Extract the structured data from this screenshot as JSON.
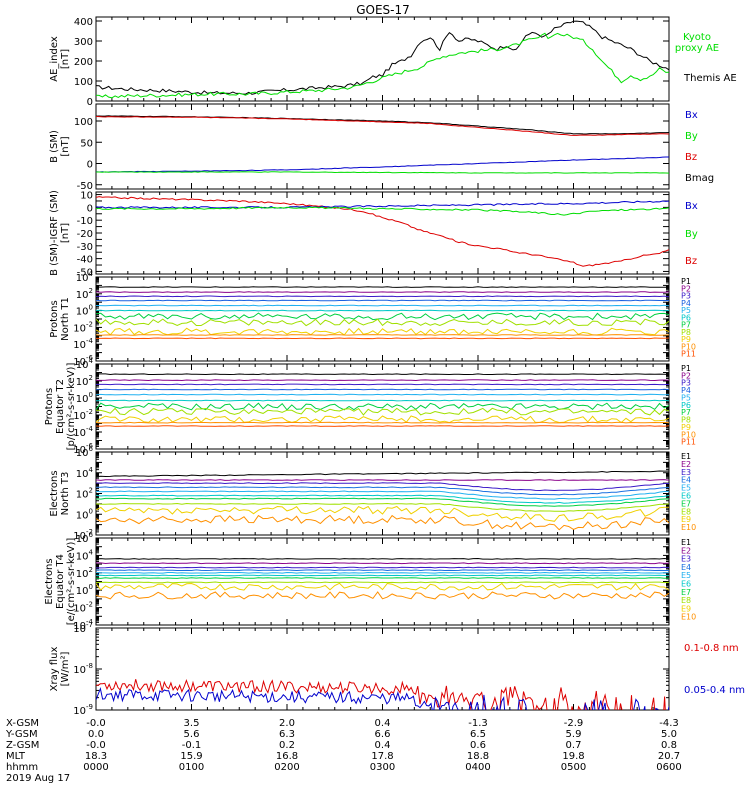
{
  "title": "GOES-17",
  "colors": {
    "black": "#000000",
    "green": "#00dd00",
    "blue": "#0000cc",
    "red": "#dd0000",
    "p": [
      "#000000",
      "#8a008a",
      "#3a1ac8",
      "#1a60e0",
      "#20b0f0",
      "#00c8c8",
      "#00d040",
      "#a0e000",
      "#f0d000",
      "#ff9000",
      "#ff5000",
      "#e00000"
    ],
    "e": [
      "#000000",
      "#8a008a",
      "#3a1ac8",
      "#1a70e0",
      "#20b0f0",
      "#00c8c8",
      "#00d040",
      "#a0e000",
      "#f0d000",
      "#ff9000",
      "#e00000"
    ]
  },
  "chart_data": [
    {
      "id": "ae",
      "type": "line",
      "ylabel": [
        "AE_index",
        "[nT]"
      ],
      "ylim": [
        0,
        420
      ],
      "yscale": "linear",
      "yticks": [
        0,
        100,
        200,
        300,
        400
      ],
      "legend": [
        {
          "text": "Kyoto",
          "color": "green"
        },
        {
          "text": "proxy AE",
          "color": "green"
        },
        {
          "text": "Themis AE",
          "color": "black"
        }
      ],
      "series": [
        {
          "color": "black",
          "points": [
            [
              0,
              70
            ],
            [
              0.3,
              60
            ],
            [
              0.8,
              50
            ],
            [
              1.2,
              40
            ],
            [
              1.6,
              40
            ],
            [
              2.0,
              55
            ],
            [
              2.3,
              65
            ],
            [
              2.6,
              75
            ],
            [
              2.8,
              90
            ],
            [
              2.9,
              120
            ],
            [
              3.0,
              130
            ],
            [
              3.1,
              180
            ],
            [
              3.2,
              200
            ],
            [
              3.3,
              230
            ],
            [
              3.4,
              300
            ],
            [
              3.5,
              320
            ],
            [
              3.6,
              260
            ],
            [
              3.7,
              350
            ],
            [
              3.8,
              300
            ],
            [
              3.9,
              310
            ],
            [
              4.0,
              300
            ],
            [
              4.1,
              280
            ],
            [
              4.2,
              260
            ],
            [
              4.3,
              280
            ],
            [
              4.4,
              250
            ],
            [
              4.5,
              330
            ],
            [
              4.6,
              340
            ],
            [
              4.7,
              320
            ],
            [
              4.8,
              360
            ],
            [
              4.9,
              380
            ],
            [
              5.0,
              400
            ],
            [
              5.1,
              390
            ],
            [
              5.2,
              360
            ],
            [
              5.3,
              320
            ],
            [
              5.4,
              300
            ],
            [
              5.5,
              280
            ],
            [
              5.6,
              260
            ],
            [
              5.7,
              230
            ],
            [
              5.8,
              200
            ],
            [
              5.9,
              180
            ],
            [
              6.0,
              160
            ]
          ]
        },
        {
          "color": "green",
          "points": [
            [
              0,
              20
            ],
            [
              0.3,
              25
            ],
            [
              0.8,
              30
            ],
            [
              1.2,
              35
            ],
            [
              1.6,
              35
            ],
            [
              2.0,
              45
            ],
            [
              2.4,
              55
            ],
            [
              2.7,
              70
            ],
            [
              2.9,
              100
            ],
            [
              3.1,
              130
            ],
            [
              3.4,
              170
            ],
            [
              3.6,
              220
            ],
            [
              3.8,
              240
            ],
            [
              4.0,
              250
            ],
            [
              4.2,
              260
            ],
            [
              4.4,
              280
            ],
            [
              4.5,
              300
            ],
            [
              4.6,
              310
            ],
            [
              4.7,
              330
            ],
            [
              4.75,
              310
            ],
            [
              4.8,
              340
            ],
            [
              5.0,
              320
            ],
            [
              5.1,
              300
            ],
            [
              5.2,
              260
            ],
            [
              5.3,
              200
            ],
            [
              5.4,
              150
            ],
            [
              5.5,
              100
            ],
            [
              5.6,
              130
            ],
            [
              5.7,
              110
            ],
            [
              5.8,
              120
            ],
            [
              5.9,
              160
            ],
            [
              6.0,
              140
            ]
          ]
        }
      ]
    },
    {
      "id": "bsm",
      "type": "line",
      "ylabel": [
        "B (SM)",
        "[nT]"
      ],
      "ylim": [
        -60,
        140
      ],
      "yscale": "linear",
      "yticks": [
        -50,
        0,
        50,
        100
      ],
      "legend": [
        {
          "text": "Bx",
          "color": "blue"
        },
        {
          "text": "By",
          "color": "green"
        },
        {
          "text": "Bz",
          "color": "red"
        },
        {
          "text": "Bmag",
          "color": "black"
        }
      ],
      "series": [
        {
          "color": "black",
          "points": [
            [
              0,
              112
            ],
            [
              1.0,
              110
            ],
            [
              2.0,
              106
            ],
            [
              3.0,
              100
            ],
            [
              3.5,
              96
            ],
            [
              4.0,
              88
            ],
            [
              4.5,
              80
            ],
            [
              4.9,
              72
            ],
            [
              5.0,
              70
            ],
            [
              5.5,
              70
            ],
            [
              6.0,
              73
            ]
          ]
        },
        {
          "color": "red",
          "points": [
            [
              0,
              110
            ],
            [
              1.0,
              109
            ],
            [
              2.0,
              105
            ],
            [
              3.0,
              98
            ],
            [
              3.5,
              94
            ],
            [
              4.0,
              85
            ],
            [
              4.5,
              76
            ],
            [
              4.9,
              68
            ],
            [
              5.0,
              66
            ],
            [
              5.5,
              68
            ],
            [
              6.0,
              70
            ]
          ]
        },
        {
          "color": "blue",
          "points": [
            [
              0,
              -20
            ],
            [
              1.0,
              -18
            ],
            [
              2.0,
              -15
            ],
            [
              3.0,
              -8
            ],
            [
              4.0,
              0
            ],
            [
              5.0,
              8
            ],
            [
              6.0,
              15
            ]
          ]
        },
        {
          "color": "green",
          "points": [
            [
              0,
              -20
            ],
            [
              1.0,
              -20
            ],
            [
              2.0,
              -20
            ],
            [
              3.0,
              -21
            ],
            [
              4.0,
              -22
            ],
            [
              5.0,
              -22
            ],
            [
              6.0,
              -22
            ]
          ]
        }
      ]
    },
    {
      "id": "bigrf",
      "type": "line",
      "ylabel": [
        "B (SM)-IGRF (SM)",
        "[nT]"
      ],
      "ylim": [
        -52,
        12
      ],
      "yscale": "linear",
      "yticks": [
        -50,
        -45,
        -40,
        -35,
        -30,
        -25,
        -20,
        -15,
        -10,
        -5,
        0,
        5,
        10
      ],
      "ytick_labels": [
        -50,
        -40,
        -30,
        -20,
        -10,
        0,
        10
      ],
      "legend": [
        {
          "text": "Bx",
          "color": "blue"
        },
        {
          "text": "By",
          "color": "green"
        },
        {
          "text": "Bz",
          "color": "red"
        }
      ],
      "series": [
        {
          "color": "red",
          "points": [
            [
              0,
              8
            ],
            [
              0.5,
              7
            ],
            [
              1.0,
              6
            ],
            [
              1.5,
              5
            ],
            [
              2.0,
              3
            ],
            [
              2.3,
              1
            ],
            [
              2.6,
              -1
            ],
            [
              2.8,
              -3
            ],
            [
              3.0,
              -8
            ],
            [
              3.2,
              -12
            ],
            [
              3.4,
              -18
            ],
            [
              3.6,
              -22
            ],
            [
              3.8,
              -27
            ],
            [
              4.0,
              -30
            ],
            [
              4.2,
              -32
            ],
            [
              4.4,
              -35
            ],
            [
              4.6,
              -37
            ],
            [
              4.8,
              -40
            ],
            [
              5.0,
              -43
            ],
            [
              5.1,
              -46
            ],
            [
              5.3,
              -44
            ],
            [
              5.5,
              -42
            ],
            [
              5.7,
              -38
            ],
            [
              5.9,
              -36
            ],
            [
              6.0,
              -33
            ]
          ]
        },
        {
          "color": "blue",
          "points": [
            [
              0,
              0
            ],
            [
              1.0,
              0
            ],
            [
              2.0,
              0
            ],
            [
              3.0,
              1
            ],
            [
              4.0,
              2
            ],
            [
              5.0,
              3
            ],
            [
              6.0,
              5
            ]
          ]
        },
        {
          "color": "green",
          "points": [
            [
              0,
              -1
            ],
            [
              1.0,
              -1
            ],
            [
              2.0,
              0
            ],
            [
              3.0,
              -1
            ],
            [
              4.0,
              -2
            ],
            [
              4.6,
              -4
            ],
            [
              4.9,
              -6
            ],
            [
              5.2,
              -3
            ],
            [
              5.5,
              -2
            ],
            [
              6.0,
              -1
            ]
          ]
        }
      ]
    },
    {
      "id": "pn",
      "type": "line",
      "ylabel": [
        "Protons",
        "North T1"
      ],
      "ylim": [
        -6,
        4
      ],
      "yscale": "log",
      "ytick_labels": [
        -6,
        -4,
        -2,
        0,
        2,
        4
      ],
      "channels": [
        "P1",
        "P2",
        "P3",
        "P4",
        "P5",
        "P6",
        "P7",
        "P8",
        "P9",
        "P10",
        "P11"
      ],
      "levels": [
        2.8,
        2.2,
        1.7,
        1.2,
        0.6,
        0,
        -0.7,
        -1.4,
        -2.5,
        -2.9,
        -3.3
      ]
    },
    {
      "id": "pe",
      "type": "line",
      "ylabel": [
        "Protons",
        "Equator T2",
        "[p/(cm²-s-sr-keV)]"
      ],
      "ylim": [
        -6,
        4
      ],
      "yscale": "log",
      "ytick_labels": [
        -6,
        -4,
        -2,
        0,
        2,
        4
      ],
      "channels": [
        "P1",
        "P2",
        "P3",
        "P4",
        "P5",
        "P6",
        "P7",
        "P8",
        "P9",
        "P10",
        "P11"
      ],
      "levels": [
        2.8,
        2.1,
        1.6,
        1.0,
        0.4,
        -0.3,
        -1.0,
        -1.6,
        -2.5,
        -2.9,
        -3.3
      ]
    },
    {
      "id": "en",
      "type": "line",
      "ylabel": [
        "Electrons",
        "North T3"
      ],
      "ylim": [
        -2,
        6
      ],
      "yscale": "log",
      "ytick_labels": [
        -2,
        0,
        2,
        4,
        6
      ],
      "channels": [
        "E1",
        "E2",
        "E3",
        "E4",
        "E5",
        "E6",
        "E7",
        "E8",
        "E9",
        "E10"
      ],
      "levels": [
        3.9,
        3.3,
        3.0,
        2.6,
        2.2,
        1.8,
        1.5,
        1.0,
        0.4,
        -0.5
      ]
    },
    {
      "id": "ee",
      "type": "line",
      "ylabel": [
        "Electrons",
        "Equator T4",
        "[e/(cm²-s-sr-keV)]"
      ],
      "ylim": [
        -4,
        6
      ],
      "yscale": "log",
      "ytick_labels": [
        -4,
        -2,
        0,
        2,
        4,
        6
      ],
      "channels": [
        "E1",
        "E2",
        "E3",
        "E4",
        "E5",
        "E6",
        "E7",
        "E8",
        "E9",
        "E10"
      ],
      "levels": [
        3.6,
        3.1,
        2.6,
        2.3,
        2.0,
        1.7,
        1.4,
        0.9,
        0.4,
        -0.6
      ]
    },
    {
      "id": "xray",
      "type": "line",
      "ylabel": [
        "Xray flux",
        "[W/m²]"
      ],
      "ylim": [
        -9,
        -7
      ],
      "yscale": "log",
      "ytick_labels": [
        -9,
        -8,
        -7
      ],
      "legend": [
        {
          "text": "0.1-0.8 nm",
          "color": "red"
        },
        {
          "text": "0.05-0.4 nm",
          "color": "blue"
        }
      ],
      "series": [
        {
          "color": "red",
          "level": -8.38
        },
        {
          "color": "blue",
          "level": -8.62
        }
      ]
    }
  ],
  "xaxis": {
    "range": [
      0,
      6
    ],
    "row_labels": [
      "X-GSM",
      "Y-GSM",
      "Z-GSM",
      "MLT",
      "hhmm",
      "2019 Aug 17"
    ],
    "columns": [
      {
        "x": 0,
        "values": [
          "-0.0",
          "0.0",
          "-0.0",
          "18.3",
          "0000"
        ]
      },
      {
        "x": 1,
        "values": [
          "3.5",
          "5.6",
          "-0.1",
          "15.9",
          "0100"
        ]
      },
      {
        "x": 2,
        "values": [
          "2.0",
          "6.3",
          "0.2",
          "16.8",
          "0200"
        ]
      },
      {
        "x": 3,
        "values": [
          "0.4",
          "6.6",
          "0.4",
          "17.8",
          "0300"
        ]
      },
      {
        "x": 4,
        "values": [
          "-1.3",
          "6.5",
          "0.6",
          "18.8",
          "0400"
        ]
      },
      {
        "x": 5,
        "values": [
          "-2.9",
          "5.9",
          "0.7",
          "19.8",
          "0500"
        ]
      },
      {
        "x": 6,
        "values": [
          "-4.3",
          "5.0",
          "0.8",
          "20.7",
          "0600"
        ]
      }
    ]
  }
}
